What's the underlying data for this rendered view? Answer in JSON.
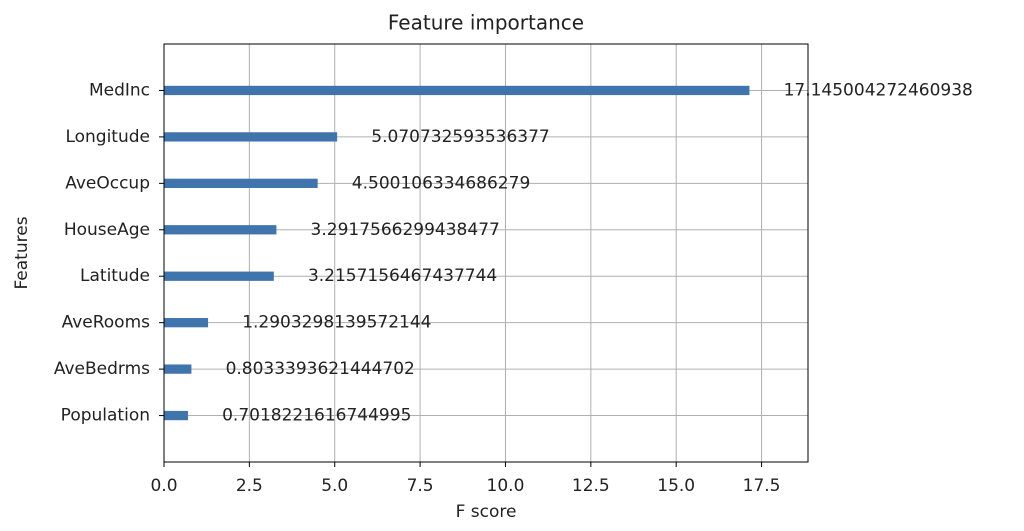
{
  "chart_data": {
    "type": "barh",
    "title": "Feature importance",
    "x_label": "F score",
    "y_label": "Features",
    "categories": [
      "MedInc",
      "Longitude",
      "AveOccup",
      "HouseAge",
      "Latitude",
      "AveRooms",
      "AveBedrms",
      "Population"
    ],
    "values": [
      17.145004272460938,
      5.070732593536377,
      4.500106334686279,
      3.2917566299438477,
      3.2157156467437744,
      1.2903298139572144,
      0.8033393621444702,
      0.7018221616744995
    ],
    "color": "#3f74ad",
    "xlim": [
      0,
      18.86
    ],
    "xticks": [
      {
        "value": 0,
        "label": "0.0"
      },
      2.5,
      {
        "value": 5,
        "label": "5.0"
      },
      7.5,
      {
        "value": 10,
        "label": "10.0"
      },
      12.5,
      {
        "value": 15,
        "label": "15.0"
      },
      17.5
    ],
    "grid": true
  }
}
